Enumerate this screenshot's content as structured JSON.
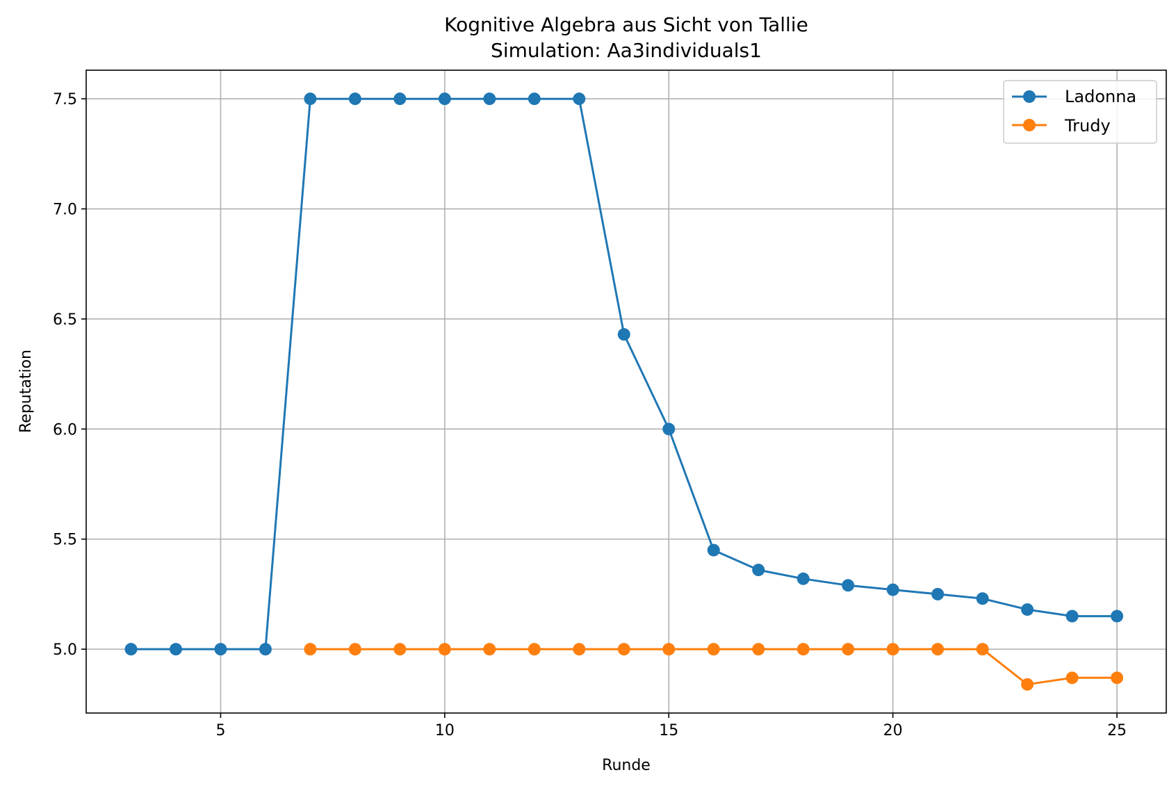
{
  "chart_data": {
    "type": "line",
    "title": "Kognitive Algebra aus Sicht von Tallie",
    "subtitle": "Simulation: Aa3individuals1",
    "xlabel": "Runde",
    "ylabel": "Reputation",
    "xlim": [
      2.0,
      26.1
    ],
    "ylim": [
      4.71,
      7.63
    ],
    "xticks": [
      5,
      10,
      15,
      20,
      25
    ],
    "yticks": [
      5.0,
      5.5,
      6.0,
      6.5,
      7.0,
      7.5
    ],
    "xtick_labels": [
      "5",
      "10",
      "15",
      "20",
      "25"
    ],
    "ytick_labels": [
      "5.0",
      "5.5",
      "6.0",
      "6.5",
      "7.0",
      "7.5"
    ],
    "grid": true,
    "legend_position": "upper right",
    "series": [
      {
        "name": "Ladonna",
        "color": "#1f77b4",
        "marker": "circle",
        "x": [
          3,
          4,
          5,
          6,
          7,
          8,
          9,
          10,
          11,
          12,
          13,
          14,
          15,
          16,
          17,
          18,
          19,
          20,
          21,
          22,
          23,
          24,
          25
        ],
        "y": [
          5.0,
          5.0,
          5.0,
          5.0,
          7.5,
          7.5,
          7.5,
          7.5,
          7.5,
          7.5,
          7.5,
          6.43,
          6.0,
          5.45,
          5.36,
          5.32,
          5.29,
          5.27,
          5.25,
          5.23,
          5.18,
          5.15,
          5.15
        ]
      },
      {
        "name": "Trudy",
        "color": "#ff7f0e",
        "marker": "circle",
        "x": [
          7,
          8,
          9,
          10,
          11,
          12,
          13,
          14,
          15,
          16,
          17,
          18,
          19,
          20,
          21,
          22,
          23,
          24,
          25
        ],
        "y": [
          5.0,
          5.0,
          5.0,
          5.0,
          5.0,
          5.0,
          5.0,
          5.0,
          5.0,
          5.0,
          5.0,
          5.0,
          5.0,
          5.0,
          5.0,
          5.0,
          4.84,
          4.87,
          4.87
        ]
      }
    ]
  }
}
